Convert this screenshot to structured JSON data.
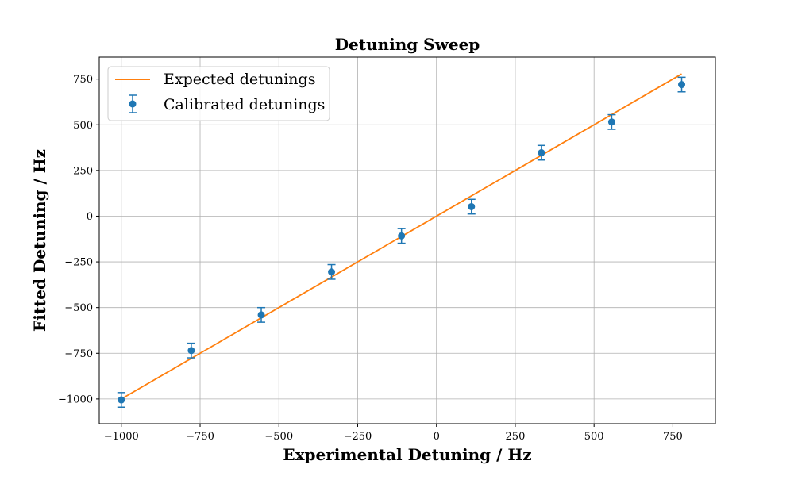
{
  "chart_data": {
    "type": "scatter",
    "title": "Detuning Sweep",
    "xlabel": "Experimental Detuning / Hz",
    "ylabel": "Fitted Detuning / Hz",
    "xlim": [
      -1070,
      885
    ],
    "ylim": [
      -1135,
      870
    ],
    "xticks": [
      -1000,
      -750,
      -500,
      -250,
      0,
      250,
      500,
      750
    ],
    "yticks": [
      -1000,
      -750,
      -500,
      -250,
      0,
      250,
      500,
      750
    ],
    "xtick_labels": [
      "−1000",
      "−750",
      "−500",
      "−250",
      "0",
      "250",
      "500",
      "750"
    ],
    "ytick_labels": [
      "−1000",
      "−750",
      "−500",
      "−250",
      "0",
      "250",
      "500",
      "750"
    ],
    "grid": true,
    "legend_position": "top-left",
    "series": [
      {
        "name": "Expected detunings",
        "kind": "line",
        "color": "#ff7f0e",
        "x": [
          -1000,
          778
        ],
        "y": [
          -1000,
          778
        ]
      },
      {
        "name": "Calibrated detunings",
        "kind": "errorbar",
        "color": "#1f77b4",
        "x": [
          -1000,
          -778,
          -556,
          -333,
          -111,
          111,
          333,
          556,
          778
        ],
        "y": [
          -1005,
          -735,
          -540,
          -305,
          -108,
          52,
          347,
          515,
          720
        ],
        "yerr": [
          40,
          40,
          40,
          40,
          40,
          40,
          40,
          40,
          40
        ]
      }
    ]
  }
}
